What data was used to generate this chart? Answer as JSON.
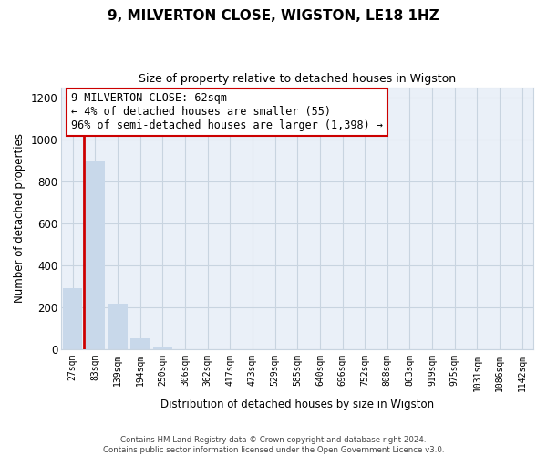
{
  "title": "9, MILVERTON CLOSE, WIGSTON, LE18 1HZ",
  "subtitle": "Size of property relative to detached houses in Wigston",
  "xlabel": "Distribution of detached houses by size in Wigston",
  "ylabel": "Number of detached properties",
  "bar_labels": [
    "27sqm",
    "83sqm",
    "139sqm",
    "194sqm",
    "250sqm",
    "306sqm",
    "362sqm",
    "417sqm",
    "473sqm",
    "529sqm",
    "585sqm",
    "640sqm",
    "696sqm",
    "752sqm",
    "808sqm",
    "863sqm",
    "919sqm",
    "975sqm",
    "1031sqm",
    "1086sqm",
    "1142sqm"
  ],
  "bar_values": [
    293,
    900,
    220,
    55,
    15,
    0,
    0,
    0,
    0,
    0,
    0,
    0,
    0,
    0,
    0,
    0,
    0,
    0,
    0,
    0,
    0
  ],
  "bar_color": "#c8d8ea",
  "highlight_color": "#cc0000",
  "annotation_text_line1": "9 MILVERTON CLOSE: 62sqm",
  "annotation_text_line2": "← 4% of detached houses are smaller (55)",
  "annotation_text_line3": "96% of semi-detached houses are larger (1,398) →",
  "ylim": [
    0,
    1250
  ],
  "yticks": [
    0,
    200,
    400,
    600,
    800,
    1000,
    1200
  ],
  "footer_line1": "Contains HM Land Registry data © Crown copyright and database right 2024.",
  "footer_line2": "Contains public sector information licensed under the Open Government Licence v3.0.",
  "background_color": "#ffffff",
  "plot_bg_color": "#eaf0f8",
  "grid_color": "#c8d4e0"
}
